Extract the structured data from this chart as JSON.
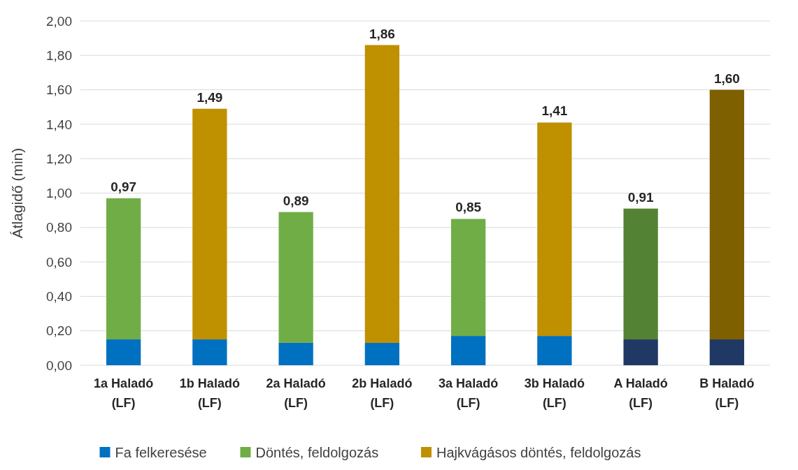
{
  "chart_data": {
    "type": "bar",
    "stacked": true,
    "ylabel": "Átlagidő (min)",
    "categories": [
      "1a Haladó\n(LF)",
      "1b Haladó\n(LF)",
      "2a Haladó\n(LF)",
      "2b Haladó\n(LF)",
      "3a Haladó\n(LF)",
      "3b Haladó\n(LF)",
      "A Haladó\n(LF)",
      "B Haladó\n(LF)"
    ],
    "series": [
      {
        "name": "Fa felkeresése",
        "color": "#0070c0",
        "colors": [
          "#0070c0",
          "#0070c0",
          "#0070c0",
          "#0070c0",
          "#0070c0",
          "#0070c0",
          "#203864",
          "#203864"
        ],
        "values": [
          0.15,
          0.15,
          0.13,
          0.13,
          0.17,
          0.17,
          0.15,
          0.15
        ]
      },
      {
        "name": "Döntés, feldolgozás",
        "color": "#70ad47",
        "colors": [
          "#70ad47",
          null,
          "#70ad47",
          null,
          "#70ad47",
          null,
          "#548235",
          null
        ],
        "values": [
          0.82,
          null,
          0.76,
          null,
          0.68,
          null,
          0.76,
          null
        ]
      },
      {
        "name": "Hajkvágásos döntés, feldolgozás",
        "color": "#bf9000",
        "colors": [
          null,
          "#bf9000",
          null,
          "#bf9000",
          null,
          "#bf9000",
          null,
          "#7f6000"
        ],
        "values": [
          null,
          1.34,
          null,
          1.73,
          null,
          1.24,
          null,
          1.45
        ]
      }
    ],
    "totals": [
      "0,97",
      "1,49",
      "0,89",
      "1,86",
      "0,85",
      "1,41",
      "0,91",
      "1,60"
    ],
    "ylim": [
      0,
      2
    ],
    "yticks": [
      {
        "value": 0,
        "label": "0,00"
      },
      {
        "value": 0.2,
        "label": "0,20"
      },
      {
        "value": 0.4,
        "label": "0,40"
      },
      {
        "value": 0.6,
        "label": "0,60"
      },
      {
        "value": 0.8,
        "label": "0,80"
      },
      {
        "value": 1,
        "label": "1,00"
      },
      {
        "value": 1.2,
        "label": "1,20"
      },
      {
        "value": 1.4,
        "label": "1,40"
      },
      {
        "value": 1.6,
        "label": "1,60"
      },
      {
        "value": 1.8,
        "label": "1,80"
      },
      {
        "value": 2,
        "label": "2,00"
      }
    ],
    "grid": "y",
    "legend": "bottom"
  }
}
